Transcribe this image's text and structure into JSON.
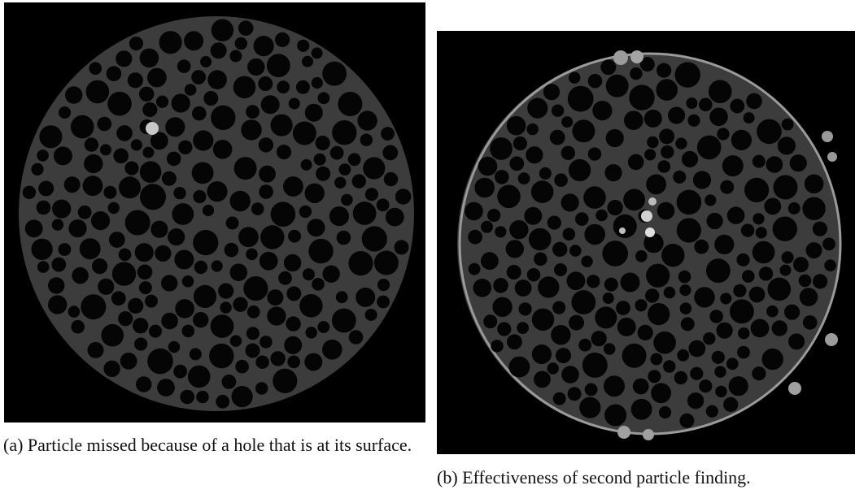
{
  "figures": [
    {
      "caption": "(a) Particle missed because of a hole that is at its surface."
    },
    {
      "caption": "(b) Effectiveness of second particle finding."
    }
  ]
}
